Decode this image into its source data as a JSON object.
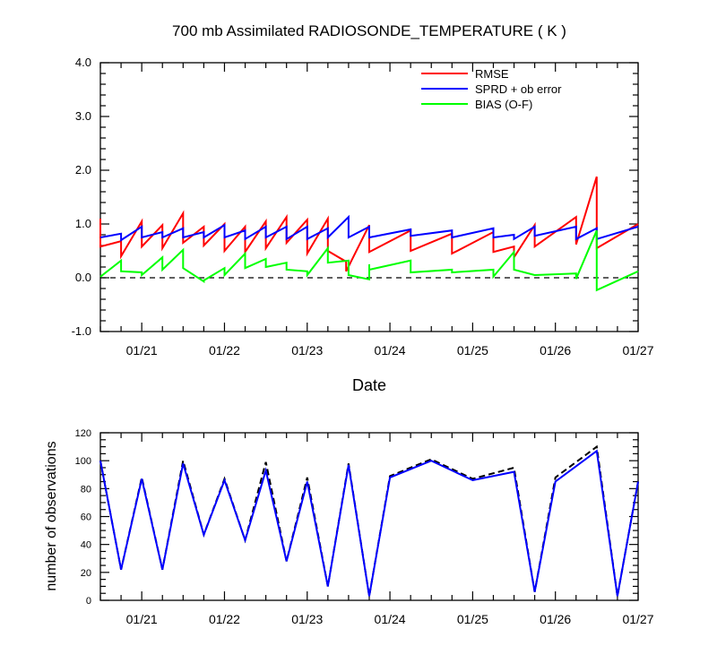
{
  "figure": {
    "title": "700 mb Assimilated RADIOSONDE_TEMPERATURE ( K )",
    "xlabel": "Date"
  },
  "chart_data": [
    {
      "type": "line",
      "title": "700 mb Assimilated RADIOSONDE_TEMPERATURE ( K )",
      "xlabel": "Date",
      "ylabel": "",
      "xlim": [
        0,
        6.5
      ],
      "ylim": [
        -1.0,
        4.0
      ],
      "yticks": [
        "-1.0",
        "0.0",
        "1.0",
        "2.0",
        "3.0",
        "4.0"
      ],
      "xticks": [
        {
          "x": 0.5,
          "label": "01/21"
        },
        {
          "x": 1.5,
          "label": "01/22"
        },
        {
          "x": 2.5,
          "label": "01/23"
        },
        {
          "x": 3.5,
          "label": "01/24"
        },
        {
          "x": 4.5,
          "label": "01/25"
        },
        {
          "x": 5.5,
          "label": "01/26"
        },
        {
          "x": 6.5,
          "label": "01/27"
        }
      ],
      "zero_line": "dashed",
      "legend_position": "top-right",
      "series": [
        {
          "name": "RMSE",
          "color": "#ff0000",
          "points": [
            [
              0,
              1.1
            ],
            [
              0,
              0.58
            ],
            [
              0.25,
              0.68
            ],
            [
              0.25,
              0.4
            ],
            [
              0.5,
              1.05
            ],
            [
              0.5,
              0.58
            ],
            [
              0.75,
              0.98
            ],
            [
              0.75,
              0.55
            ],
            [
              1.0,
              1.2
            ],
            [
              1.0,
              0.65
            ],
            [
              1.25,
              0.95
            ],
            [
              1.25,
              0.6
            ],
            [
              1.5,
              1.0
            ],
            [
              1.5,
              0.5
            ],
            [
              1.75,
              0.95
            ],
            [
              1.75,
              0.48
            ],
            [
              2.0,
              1.05
            ],
            [
              2.0,
              0.55
            ],
            [
              2.25,
              1.13
            ],
            [
              2.25,
              0.65
            ],
            [
              2.5,
              1.08
            ],
            [
              2.5,
              0.45
            ],
            [
              2.75,
              1.1
            ],
            [
              2.75,
              0.5
            ],
            [
              2.97,
              0.3
            ],
            [
              2.97,
              0.12
            ],
            [
              3.25,
              0.98
            ],
            [
              3.25,
              0.48
            ],
            [
              3.75,
              0.88
            ],
            [
              3.75,
              0.5
            ],
            [
              4.25,
              0.82
            ],
            [
              4.25,
              0.45
            ],
            [
              4.75,
              0.85
            ],
            [
              4.75,
              0.48
            ],
            [
              5.0,
              0.58
            ],
            [
              5.0,
              0.38
            ],
            [
              5.25,
              0.98
            ],
            [
              5.25,
              0.58
            ],
            [
              5.75,
              1.13
            ],
            [
              5.75,
              0.62
            ],
            [
              6.0,
              1.88
            ],
            [
              6.0,
              0.55
            ],
            [
              6.5,
              1.0
            ]
          ]
        },
        {
          "name": "SPRD + ob error",
          "color": "#0000ff",
          "points": [
            [
              0,
              0.75
            ],
            [
              0.25,
              0.82
            ],
            [
              0.25,
              0.7
            ],
            [
              0.5,
              0.95
            ],
            [
              0.5,
              0.75
            ],
            [
              0.75,
              0.85
            ],
            [
              0.75,
              0.75
            ],
            [
              1.0,
              0.92
            ],
            [
              1.0,
              0.75
            ],
            [
              1.25,
              0.85
            ],
            [
              1.25,
              0.75
            ],
            [
              1.5,
              0.98
            ],
            [
              1.5,
              0.75
            ],
            [
              1.75,
              0.88
            ],
            [
              1.75,
              0.72
            ],
            [
              2.0,
              0.95
            ],
            [
              2.0,
              0.75
            ],
            [
              2.25,
              0.95
            ],
            [
              2.25,
              0.72
            ],
            [
              2.5,
              0.95
            ],
            [
              2.5,
              0.72
            ],
            [
              2.75,
              0.92
            ],
            [
              2.75,
              0.75
            ],
            [
              3.0,
              1.13
            ],
            [
              3.0,
              0.75
            ],
            [
              3.25,
              0.95
            ],
            [
              3.25,
              0.75
            ],
            [
              3.75,
              0.9
            ],
            [
              3.75,
              0.78
            ],
            [
              4.25,
              0.88
            ],
            [
              4.25,
              0.75
            ],
            [
              4.75,
              0.92
            ],
            [
              4.75,
              0.75
            ],
            [
              5.0,
              0.8
            ],
            [
              5.0,
              0.72
            ],
            [
              5.25,
              0.95
            ],
            [
              5.25,
              0.78
            ],
            [
              5.75,
              0.95
            ],
            [
              5.75,
              0.72
            ],
            [
              6.0,
              0.92
            ],
            [
              6.0,
              0.72
            ],
            [
              6.5,
              0.95
            ]
          ]
        },
        {
          "name": "BIAS (O-F)",
          "color": "#00ff00",
          "points": [
            [
              0,
              0.02
            ],
            [
              0.25,
              0.32
            ],
            [
              0.25,
              0.12
            ],
            [
              0.5,
              0.1
            ],
            [
              0.5,
              0.05
            ],
            [
              0.75,
              0.38
            ],
            [
              0.75,
              0.15
            ],
            [
              1.0,
              0.52
            ],
            [
              1.0,
              0.18
            ],
            [
              1.25,
              -0.07
            ],
            [
              1.25,
              -0.05
            ],
            [
              1.5,
              0.18
            ],
            [
              1.5,
              0.05
            ],
            [
              1.75,
              0.45
            ],
            [
              1.75,
              0.18
            ],
            [
              2.0,
              0.35
            ],
            [
              2.0,
              0.2
            ],
            [
              2.25,
              0.28
            ],
            [
              2.25,
              0.15
            ],
            [
              2.5,
              0.12
            ],
            [
              2.5,
              0.05
            ],
            [
              2.75,
              0.55
            ],
            [
              2.75,
              0.28
            ],
            [
              3.0,
              0.32
            ],
            [
              3.0,
              0.05
            ],
            [
              3.25,
              -0.03
            ],
            [
              3.25,
              0.25
            ],
            [
              3.25,
              0.15
            ],
            [
              3.75,
              0.32
            ],
            [
              3.75,
              0.1
            ],
            [
              4.25,
              0.15
            ],
            [
              4.25,
              0.1
            ],
            [
              4.75,
              0.15
            ],
            [
              4.75,
              0.02
            ],
            [
              5.0,
              0.48
            ],
            [
              5.0,
              0.15
            ],
            [
              5.25,
              0.05
            ],
            [
              5.25,
              0.05
            ],
            [
              5.75,
              0.08
            ],
            [
              5.75,
              -0.02
            ],
            [
              6.0,
              0.88
            ],
            [
              6.0,
              -0.23
            ],
            [
              6.5,
              0.12
            ]
          ]
        }
      ]
    },
    {
      "type": "line",
      "title": "",
      "xlabel": "",
      "ylabel": "number of observations",
      "xlim": [
        0,
        6.5
      ],
      "ylim": [
        0,
        120
      ],
      "yticks": [
        "0",
        "20",
        "40",
        "60",
        "80",
        "100",
        "120"
      ],
      "xticks": [
        {
          "x": 0.5,
          "label": "01/21"
        },
        {
          "x": 1.5,
          "label": "01/22"
        },
        {
          "x": 2.5,
          "label": "01/23"
        },
        {
          "x": 3.5,
          "label": "01/24"
        },
        {
          "x": 4.5,
          "label": "01/25"
        },
        {
          "x": 5.5,
          "label": "01/26"
        },
        {
          "x": 6.5,
          "label": "01/27"
        }
      ],
      "series": [
        {
          "color": "#0000ff",
          "style": "solid",
          "points": [
            [
              0,
              100
            ],
            [
              0.25,
              22
            ],
            [
              0.5,
              87
            ],
            [
              0.75,
              22
            ],
            [
              1.0,
              98
            ],
            [
              1.25,
              47
            ],
            [
              1.5,
              86
            ],
            [
              1.75,
              43
            ],
            [
              2.0,
              93
            ],
            [
              2.25,
              28
            ],
            [
              2.5,
              85
            ],
            [
              2.75,
              10
            ],
            [
              3.0,
              97
            ],
            [
              3.25,
              3
            ],
            [
              3.5,
              88
            ],
            [
              4.0,
              100
            ],
            [
              4.5,
              86
            ],
            [
              5.0,
              92
            ],
            [
              5.25,
              6
            ],
            [
              5.5,
              85
            ],
            [
              6.0,
              107
            ],
            [
              6.25,
              3
            ],
            [
              6.5,
              85
            ]
          ]
        },
        {
          "color": "#000000",
          "style": "dashed",
          "points": [
            [
              0,
              100
            ],
            [
              0.25,
              22
            ],
            [
              0.5,
              88
            ],
            [
              0.75,
              22
            ],
            [
              1.0,
              100
            ],
            [
              1.25,
              47
            ],
            [
              1.5,
              87
            ],
            [
              1.75,
              43
            ],
            [
              2.0,
              99
            ],
            [
              2.25,
              28
            ],
            [
              2.5,
              88
            ],
            [
              2.75,
              10
            ],
            [
              3.0,
              98
            ],
            [
              3.25,
              3
            ],
            [
              3.5,
              89
            ],
            [
              4.0,
              101
            ],
            [
              4.5,
              87
            ],
            [
              5.0,
              95
            ],
            [
              5.25,
              6
            ],
            [
              5.5,
              88
            ],
            [
              6.0,
              110
            ],
            [
              6.25,
              3
            ],
            [
              6.5,
              85
            ]
          ]
        }
      ]
    }
  ]
}
